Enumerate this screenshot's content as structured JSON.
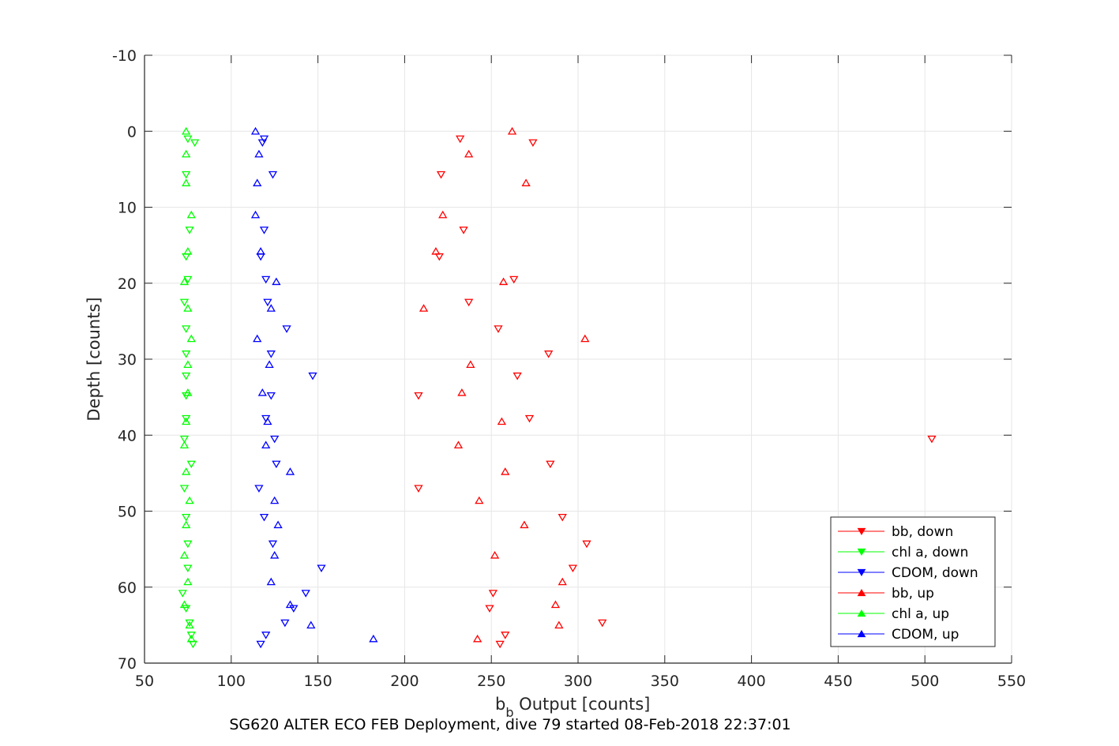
{
  "chart_data": {
    "type": "scatter",
    "xlabel_main": "b",
    "xlabel_sub": "b",
    "xlabel_rest": " Output [counts]",
    "ylabel": "Depth [counts]",
    "caption": "SG620 ALTER ECO FEB Deployment, dive 79 started 08-Feb-2018 22:37:01",
    "xlim": [
      50,
      550
    ],
    "ylim": [
      -10,
      70
    ],
    "y_reversed": true,
    "grid": true,
    "legend_position": "bottom-right",
    "xticks": [
      "50",
      "100",
      "150",
      "200",
      "250",
      "300",
      "350",
      "400",
      "450",
      "500",
      "550"
    ],
    "yticks": [
      "-10",
      "0",
      "10",
      "20",
      "30",
      "40",
      "50",
      "60",
      "70"
    ],
    "series": [
      {
        "name": "bb, down",
        "color": "#ff0000",
        "marker": "triangle-down",
        "points": [
          [
            232,
            1
          ],
          [
            274,
            1.5
          ],
          [
            221,
            5.7
          ],
          [
            234,
            13
          ],
          [
            220,
            16.5
          ],
          [
            263,
            19.5
          ],
          [
            237,
            22.5
          ],
          [
            254,
            26
          ],
          [
            283,
            29.3
          ],
          [
            265,
            32.2
          ],
          [
            208,
            34.8
          ],
          [
            272,
            37.8
          ],
          [
            504,
            40.5
          ],
          [
            284,
            43.8
          ],
          [
            208,
            47
          ],
          [
            291,
            50.8
          ],
          [
            305,
            54.3
          ],
          [
            297,
            57.5
          ],
          [
            251,
            60.8
          ],
          [
            249,
            62.8
          ],
          [
            314,
            64.7
          ],
          [
            258,
            66.3
          ],
          [
            255,
            67.5
          ]
        ]
      },
      {
        "name": "chl a, down",
        "color": "#00ff00",
        "marker": "triangle-down",
        "points": [
          [
            75,
            1
          ],
          [
            79,
            1.5
          ],
          [
            74,
            5.7
          ],
          [
            76,
            13
          ],
          [
            74,
            16.5
          ],
          [
            75,
            19.5
          ],
          [
            73,
            22.5
          ],
          [
            74,
            26
          ],
          [
            74,
            29.3
          ],
          [
            74,
            32.2
          ],
          [
            74,
            34.8
          ],
          [
            74,
            37.8
          ],
          [
            73,
            40.5
          ],
          [
            77,
            43.8
          ],
          [
            73,
            47
          ],
          [
            74,
            50.8
          ],
          [
            75,
            54.3
          ],
          [
            75,
            57.5
          ],
          [
            72,
            60.8
          ],
          [
            74,
            62.8
          ],
          [
            76,
            64.7
          ],
          [
            77,
            66.3
          ],
          [
            78,
            67.5
          ]
        ]
      },
      {
        "name": "CDOM, down",
        "color": "#0000ff",
        "marker": "triangle-down",
        "points": [
          [
            119,
            1
          ],
          [
            118,
            1.5
          ],
          [
            124,
            5.7
          ],
          [
            119,
            13
          ],
          [
            117,
            16.5
          ],
          [
            120,
            19.5
          ],
          [
            121,
            22.5
          ],
          [
            132,
            26
          ],
          [
            123,
            29.3
          ],
          [
            147,
            32.2
          ],
          [
            123,
            34.8
          ],
          [
            120,
            37.8
          ],
          [
            125,
            40.5
          ],
          [
            126,
            43.8
          ],
          [
            116,
            47
          ],
          [
            119,
            50.8
          ],
          [
            124,
            54.3
          ],
          [
            152,
            57.5
          ],
          [
            143,
            60.8
          ],
          [
            136,
            62.8
          ],
          [
            131,
            64.7
          ],
          [
            120,
            66.3
          ],
          [
            117,
            67.5
          ]
        ]
      },
      {
        "name": "bb, up",
        "color": "#ff0000",
        "marker": "triangle-up",
        "points": [
          [
            262,
            0
          ],
          [
            237,
            3
          ],
          [
            270,
            6.8
          ],
          [
            222,
            11
          ],
          [
            218,
            15.8
          ],
          [
            257,
            19.8
          ],
          [
            211,
            23.3
          ],
          [
            304,
            27.3
          ],
          [
            238,
            30.7
          ],
          [
            233,
            34.4
          ],
          [
            256,
            38.2
          ],
          [
            231,
            41.3
          ],
          [
            258,
            44.8
          ],
          [
            243,
            48.6
          ],
          [
            269,
            51.8
          ],
          [
            252,
            55.8
          ],
          [
            291,
            59.3
          ],
          [
            287,
            62.3
          ],
          [
            289,
            65
          ],
          [
            242,
            66.8
          ]
        ]
      },
      {
        "name": "chl a, up",
        "color": "#00ff00",
        "marker": "triangle-up",
        "points": [
          [
            74,
            0
          ],
          [
            74,
            3
          ],
          [
            74,
            6.8
          ],
          [
            77,
            11
          ],
          [
            75,
            15.8
          ],
          [
            73,
            19.8
          ],
          [
            75,
            23.3
          ],
          [
            77,
            27.3
          ],
          [
            75,
            30.7
          ],
          [
            75,
            34.4
          ],
          [
            74,
            38.2
          ],
          [
            73,
            41.3
          ],
          [
            74,
            44.8
          ],
          [
            76,
            48.6
          ],
          [
            74,
            51.8
          ],
          [
            73,
            55.8
          ],
          [
            75,
            59.3
          ],
          [
            73,
            62.3
          ],
          [
            76,
            65
          ],
          [
            77,
            66.8
          ]
        ]
      },
      {
        "name": "CDOM, up",
        "color": "#0000ff",
        "marker": "triangle-up",
        "points": [
          [
            114,
            0
          ],
          [
            116,
            3
          ],
          [
            115,
            6.8
          ],
          [
            114,
            11
          ],
          [
            117,
            15.8
          ],
          [
            126,
            19.8
          ],
          [
            123,
            23.3
          ],
          [
            115,
            27.3
          ],
          [
            122,
            30.7
          ],
          [
            118,
            34.4
          ],
          [
            121,
            38.2
          ],
          [
            120,
            41.3
          ],
          [
            134,
            44.8
          ],
          [
            125,
            48.6
          ],
          [
            127,
            51.8
          ],
          [
            125,
            55.8
          ],
          [
            123,
            59.3
          ],
          [
            134,
            62.3
          ],
          [
            146,
            65
          ],
          [
            182,
            66.8
          ]
        ]
      }
    ]
  }
}
